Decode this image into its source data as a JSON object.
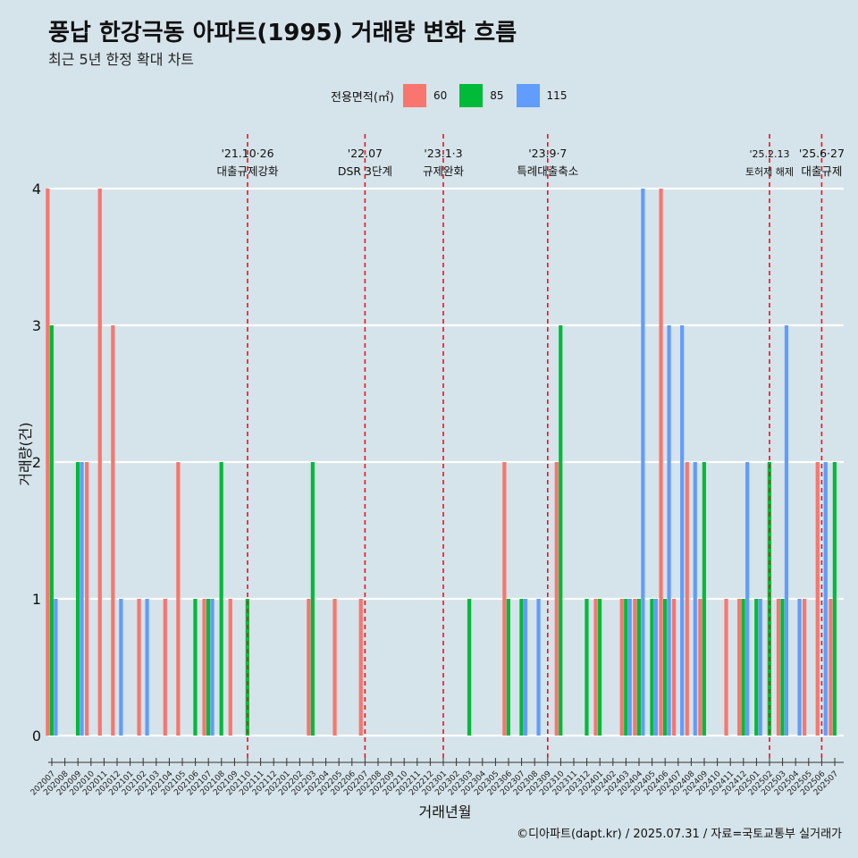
{
  "title": "풍납 한강극동 아파트(1995) 거래량 변화 흐름",
  "subtitle": "최근 5년 한정 확대 차트",
  "caption": "©디아파트(dapt.kr) / 2025.07.31 / 자료=국토교통부 실거래가",
  "legend": {
    "title": "전용면적(㎡)",
    "items": [
      {
        "label": "60",
        "color": "#f8766d"
      },
      {
        "label": "85",
        "color": "#00ba38"
      },
      {
        "label": "115",
        "color": "#619cff"
      }
    ]
  },
  "chart_data": {
    "type": "bar",
    "xlabel": "거래년월",
    "ylabel": "거래량(건)",
    "ylim": [
      0,
      4
    ],
    "yticks": [
      "0",
      "1",
      "2",
      "3",
      "4"
    ],
    "grid": "horizontal",
    "legend_position": "top",
    "categories": [
      "202007",
      "202008",
      "202009",
      "202010",
      "202011",
      "202012",
      "202101",
      "202102",
      "202103",
      "202104",
      "202105",
      "202106",
      "202107",
      "202108",
      "202109",
      "202110",
      "202111",
      "202112",
      "202201",
      "202202",
      "202203",
      "202204",
      "202205",
      "202206",
      "202207",
      "202208",
      "202209",
      "202210",
      "202211",
      "202212",
      "202301",
      "202302",
      "202303",
      "202304",
      "202305",
      "202306",
      "202307",
      "202308",
      "202309",
      "202310",
      "202311",
      "202312",
      "202401",
      "202402",
      "202403",
      "202404",
      "202405",
      "202406",
      "202407",
      "202408",
      "202409",
      "202410",
      "202411",
      "202412",
      "202501",
      "202502",
      "202503",
      "202504",
      "202505",
      "202506",
      "202507"
    ],
    "series": [
      {
        "name": "60",
        "color": "#f8766d",
        "values": [
          4,
          0,
          0,
          2,
          4,
          3,
          0,
          1,
          0,
          1,
          2,
          0,
          1,
          0,
          1,
          0,
          0,
          0,
          0,
          0,
          1,
          0,
          1,
          0,
          1,
          0,
          0,
          0,
          0,
          0,
          0,
          0,
          0,
          0,
          0,
          2,
          0,
          0,
          0,
          2,
          0,
          0,
          1,
          0,
          1,
          1,
          0,
          4,
          1,
          2,
          1,
          0,
          1,
          1,
          0,
          0,
          1,
          0,
          1,
          2,
          1
        ]
      },
      {
        "name": "85",
        "color": "#00ba38",
        "values": [
          3,
          0,
          2,
          0,
          0,
          0,
          0,
          0,
          0,
          0,
          0,
          1,
          1,
          2,
          0,
          1,
          0,
          0,
          0,
          0,
          2,
          0,
          0,
          0,
          0,
          0,
          0,
          0,
          0,
          0,
          0,
          0,
          1,
          0,
          0,
          1,
          1,
          0,
          0,
          3,
          0,
          1,
          1,
          0,
          1,
          1,
          1,
          1,
          0,
          0,
          2,
          0,
          0,
          1,
          1,
          2,
          1,
          0,
          0,
          0,
          2
        ]
      },
      {
        "name": "115",
        "color": "#619cff",
        "values": [
          1,
          0,
          2,
          0,
          0,
          1,
          0,
          1,
          0,
          0,
          0,
          0,
          1,
          0,
          0,
          0,
          0,
          0,
          0,
          0,
          0,
          0,
          0,
          0,
          0,
          0,
          0,
          0,
          0,
          0,
          0,
          0,
          0,
          0,
          0,
          0,
          1,
          1,
          0,
          0,
          0,
          0,
          0,
          0,
          1,
          4,
          1,
          3,
          3,
          2,
          0,
          0,
          0,
          2,
          1,
          0,
          3,
          1,
          0,
          2,
          0
        ]
      }
    ],
    "annotations": [
      {
        "category": "202110",
        "date": "'21.10·26",
        "text": "대출규제강화"
      },
      {
        "category": "202207",
        "date": "'22.07",
        "text": "DSR 3단계"
      },
      {
        "category": "202301",
        "date": "'23.1·3",
        "text": "규제완화"
      },
      {
        "category": "202309",
        "date": "'23.9·7",
        "text": "특례대출축소"
      },
      {
        "category": "202502",
        "date": "'25.2.13",
        "text": "토허제 해제"
      },
      {
        "category": "202506",
        "date": "'25.6·27",
        "text": "대출규제"
      }
    ]
  }
}
